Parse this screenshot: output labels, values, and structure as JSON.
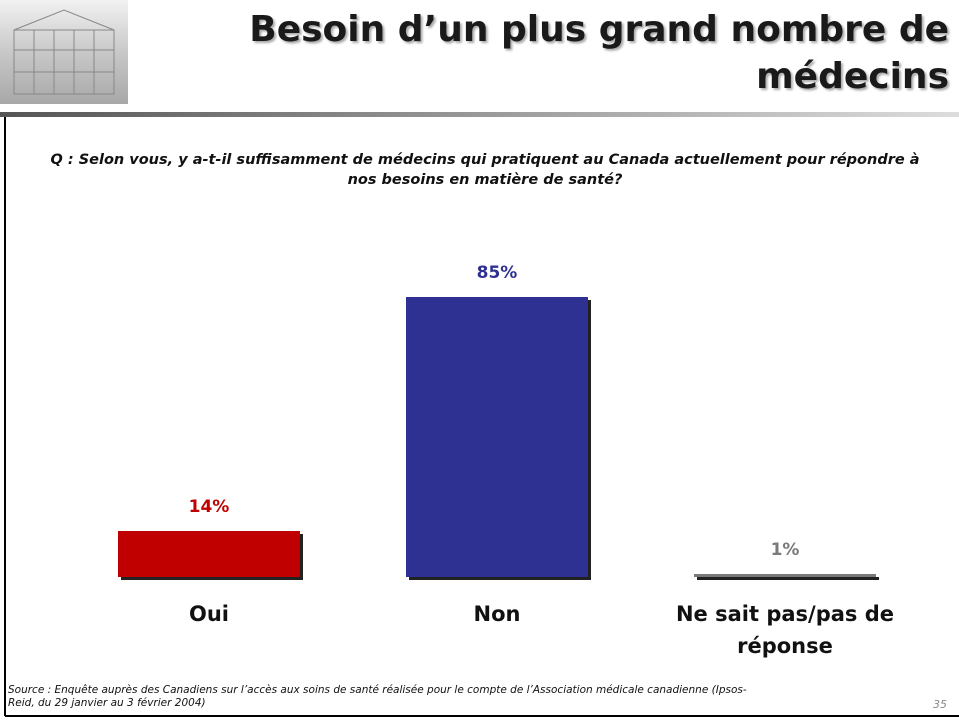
{
  "chart_data": {
    "type": "bar",
    "title": "Besoin d’un plus grand nombre de médecins",
    "subtitle": "Q : Selon vous, y a-t-il suffisamment de médecins qui pratiquent au Canada actuellement pour répondre à nos besoins en matière de santé?",
    "categories": [
      "Oui",
      "Non",
      "Ne sait pas/pas de réponse"
    ],
    "values": [
      14,
      85,
      1
    ],
    "value_labels": [
      "14%",
      "85%",
      "1%"
    ],
    "colors": [
      "#c00000",
      "#2e3192",
      "#7a7a7a"
    ],
    "source": "Source : Enquête auprès des Canadiens sur l’accès aux soins de santé réalisée pour le compte de l’Association médicale canadienne (Ipsos-Reid, du 29 janvier au 3 février 2004)",
    "page_number": "35"
  }
}
